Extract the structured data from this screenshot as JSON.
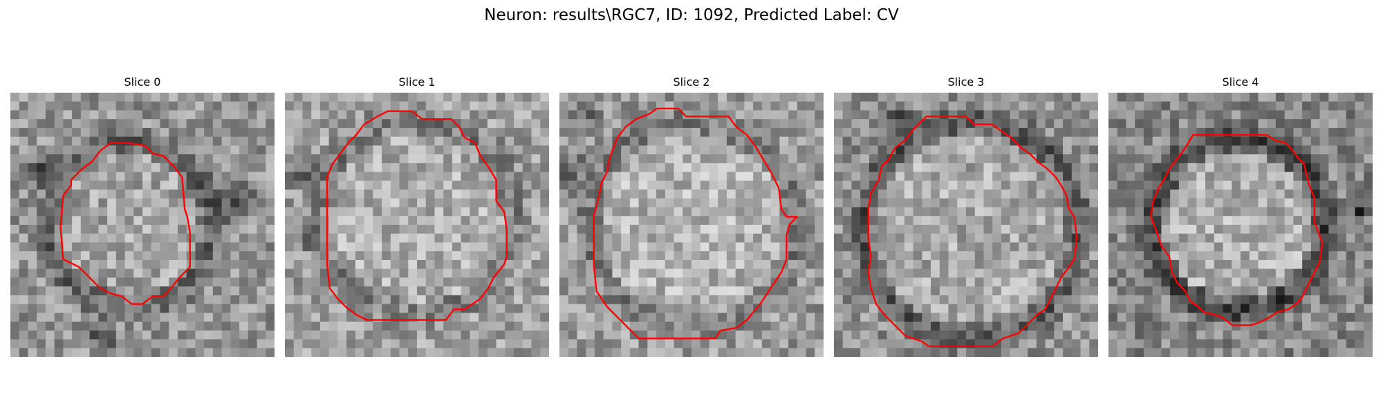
{
  "figure": {
    "title": "Neuron: results\\RGC7, ID: 1092, Predicted Label: CV"
  },
  "colors": {
    "contour": "#ff0000",
    "background": "#ffffff"
  },
  "panels": [
    {
      "title": "Slice 0"
    },
    {
      "title": "Slice 1"
    },
    {
      "title": "Slice 2"
    },
    {
      "title": "Slice 3"
    },
    {
      "title": "Slice 4"
    }
  ]
}
